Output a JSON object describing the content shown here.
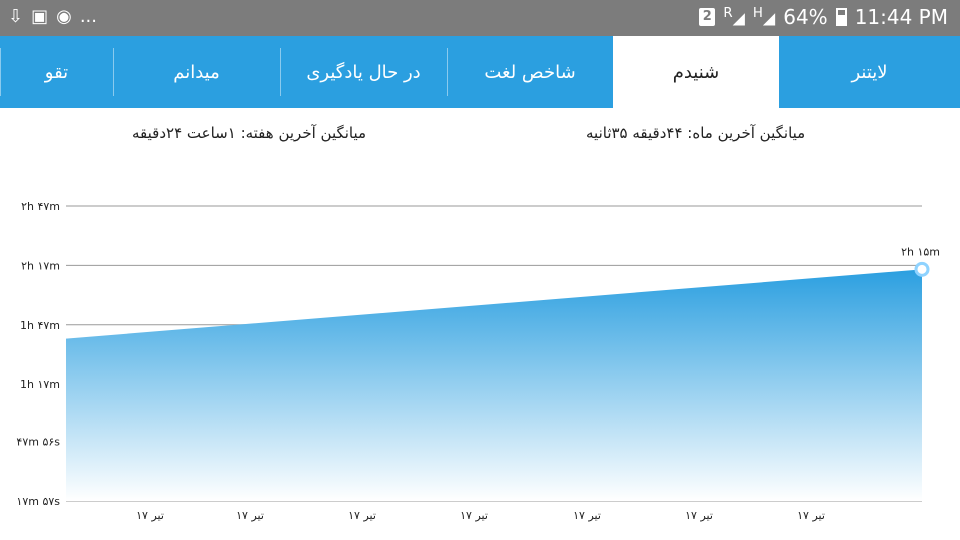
{
  "status_bar": {
    "left_icons": [
      "download-icon",
      "image-icon",
      "chrome-alert-icon"
    ],
    "ellipsis": "...",
    "sim_badge": "2",
    "roaming": "R",
    "network_h": "H",
    "battery_percent": "64%",
    "time": "11:44 PM"
  },
  "tabs": [
    {
      "label": "لایتنر",
      "active": false
    },
    {
      "label": "شنیدم",
      "active": true
    },
    {
      "label": "شاخص لغت",
      "active": false
    },
    {
      "label": "در حال یادگیری",
      "active": false
    },
    {
      "label": "میدانم",
      "active": false
    },
    {
      "label": "تقو",
      "active": false
    }
  ],
  "stats": {
    "month_avg": "میانگین آخرین ماه: ۴۴دقیقه  ۳۵ثانیه",
    "week_avg": "میانگین آخرین هفته: ۱ساعت  ۲۴دقیقه"
  },
  "chart_data": {
    "type": "area",
    "title": "",
    "y_tick_labels": [
      "۱۷m ۵۷s",
      "۴۷m ۵۶s",
      "1h ۱۷m",
      "1h ۴۷m",
      "۲h ۱۷m",
      "۲h ۴۷m"
    ],
    "y_tick_values_min": [
      17.95,
      47.93,
      77,
      107,
      137,
      167
    ],
    "ylim_min": [
      17.95,
      167
    ],
    "x_tick_labels": [
      "۱۷ تیر",
      "۱۷ تیر",
      "۱۷ تیر",
      "۱۷ تیر",
      "۱۷ تیر",
      "۱۷ تیر",
      "۱۷ تیر"
    ],
    "series": [
      {
        "values_min": [
          100,
          135
        ]
      }
    ],
    "last_point_label": "۲h ۱۵m",
    "grid": true,
    "colors": {
      "fill_top": "#2b9fe0",
      "fill_bottom": "#ffffff",
      "grid": "#9a9a9a",
      "point": "#8fd3ff"
    }
  }
}
